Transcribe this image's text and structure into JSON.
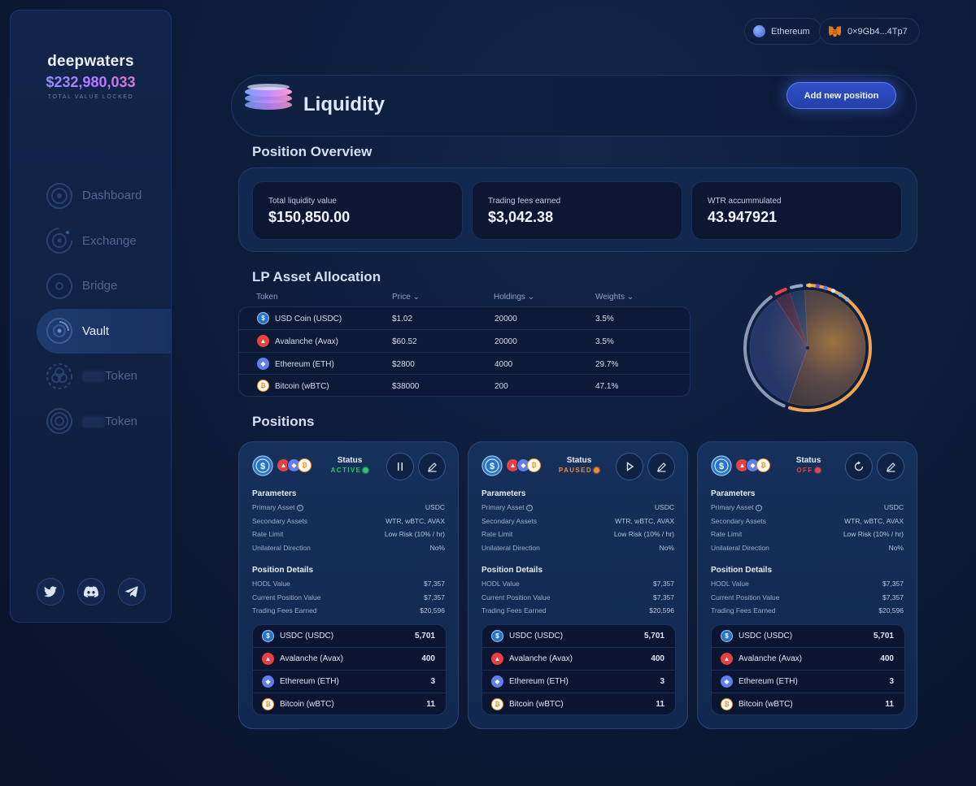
{
  "brand": {
    "name": "deepwaters",
    "tvl": "$232,980,033",
    "tvl_label": "TOTAL VALUE LOCKED"
  },
  "nav": [
    {
      "label": "Dashboard",
      "active": false
    },
    {
      "label": "Exchange",
      "active": false
    },
    {
      "label": "Bridge",
      "active": false
    },
    {
      "label": "Vault",
      "active": true
    },
    {
      "label": "Token",
      "active": false
    },
    {
      "label": "Token",
      "active": false
    }
  ],
  "socials": [
    "twitter-icon",
    "discord-icon",
    "telegram-icon"
  ],
  "topbar": {
    "network": "Ethereum",
    "wallet": "0×9Gb4...4Tp7"
  },
  "header": {
    "title": "Liquidity",
    "add_button": "Add new position"
  },
  "overview": {
    "title": "Position Overview",
    "stats": [
      {
        "label": "Total liquidity value",
        "value": "$150,850.00"
      },
      {
        "label": "Trading fees earned",
        "value": "$3,042.38"
      },
      {
        "label": "WTR accummulated",
        "value": "43.947921"
      }
    ]
  },
  "allocation": {
    "title": "LP Asset Allocation",
    "columns": [
      "Token",
      "Price",
      "Holdings",
      "Weights"
    ],
    "rows": [
      {
        "token": "USD Coin (USDC)",
        "price": "$1.02",
        "holdings": "20000",
        "weight": "3.5%"
      },
      {
        "token": "Avalanche (Avax)",
        "price": "$60.52",
        "holdings": "20000",
        "weight": "3.5%"
      },
      {
        "token": "Ethereum (ETH)",
        "price": "$2800",
        "holdings": "4000",
        "weight": "29.7%"
      },
      {
        "token": "Bitcoin (wBTC)",
        "price": "$38000",
        "holdings": "200",
        "weight": "47.1%"
      }
    ]
  },
  "chart_data": {
    "type": "pie",
    "categories": [
      "USD Coin (USDC)",
      "Avalanche (Avax)",
      "Ethereum (ETH)",
      "Bitcoin (wBTC)"
    ],
    "values": [
      3.5,
      3.5,
      29.7,
      47.1
    ]
  },
  "positions_title": "Positions",
  "positions": [
    {
      "status_label": "Status",
      "status": "ACTIVE",
      "status_color": "#35c46a",
      "params_title": "Parameters",
      "params": [
        {
          "k": "Primary Asset",
          "v": "USDC"
        },
        {
          "k": "Secondary Assets",
          "v": "WTR, wBTC, AVAX"
        },
        {
          "k": "Rate Limit",
          "v": "Low Risk (10% / hr)"
        },
        {
          "k": "Unilateral Direction",
          "v": "No%"
        }
      ],
      "details_title": "Position Details",
      "details": [
        {
          "k": "HODL Value",
          "v": "$7,357"
        },
        {
          "k": "Current Position Value",
          "v": "$7,357"
        },
        {
          "k": "Trading Fees Earned",
          "v": "$20,596"
        }
      ],
      "assets": [
        {
          "name": "USDC (USDC)",
          "value": "5,701"
        },
        {
          "name": "Avalanche (Avax)",
          "value": "400"
        },
        {
          "name": "Ethereum (ETH)",
          "value": "3"
        },
        {
          "name": "Bitcoin (wBTC)",
          "value": "11"
        }
      ]
    },
    {
      "status_label": "Status",
      "status": "PAUSED",
      "status_color": "#f08a2c",
      "params_title": "Parameters",
      "params": [
        {
          "k": "Primary Asset",
          "v": "USDC"
        },
        {
          "k": "Secondary Assets",
          "v": "WTR, wBTC, AVAX"
        },
        {
          "k": "Rate Limit",
          "v": "Low Risk (10% / hr)"
        },
        {
          "k": "Unilateral Direction",
          "v": "No%"
        }
      ],
      "details_title": "Position Details",
      "details": [
        {
          "k": "HODL Value",
          "v": "$7,357"
        },
        {
          "k": "Current Position Value",
          "v": "$7,357"
        },
        {
          "k": "Trading Fees Earned",
          "v": "$20,596"
        }
      ],
      "assets": [
        {
          "name": "USDC (USDC)",
          "value": "5,701"
        },
        {
          "name": "Avalanche (Avax)",
          "value": "400"
        },
        {
          "name": "Ethereum (ETH)",
          "value": "3"
        },
        {
          "name": "Bitcoin (wBTC)",
          "value": "11"
        }
      ]
    },
    {
      "status_label": "Status",
      "status": "OFF",
      "status_color": "#e2474f",
      "params_title": "Parameters",
      "params": [
        {
          "k": "Primary Asset",
          "v": "USDC"
        },
        {
          "k": "Secondary Assets",
          "v": "WTR, wBTC, AVAX"
        },
        {
          "k": "Rate Limit",
          "v": "Low Risk (10% / hr)"
        },
        {
          "k": "Unilateral Direction",
          "v": "No%"
        }
      ],
      "details_title": "Position Details",
      "details": [
        {
          "k": "HODL Value",
          "v": "$7,357"
        },
        {
          "k": "Current Position Value",
          "v": "$7,357"
        },
        {
          "k": "Trading Fees Earned",
          "v": "$20,596"
        }
      ],
      "assets": [
        {
          "name": "USDC (USDC)",
          "value": "5,701"
        },
        {
          "name": "Avalanche (Avax)",
          "value": "400"
        },
        {
          "name": "Ethereum (ETH)",
          "value": "3"
        },
        {
          "name": "Bitcoin (wBTC)",
          "value": "11"
        }
      ]
    }
  ],
  "colors": {
    "usdc": "#2775ca",
    "avax": "#e84142",
    "eth": "#627eea",
    "btc": "#f7931a",
    "accent": "#3b5bdb"
  }
}
